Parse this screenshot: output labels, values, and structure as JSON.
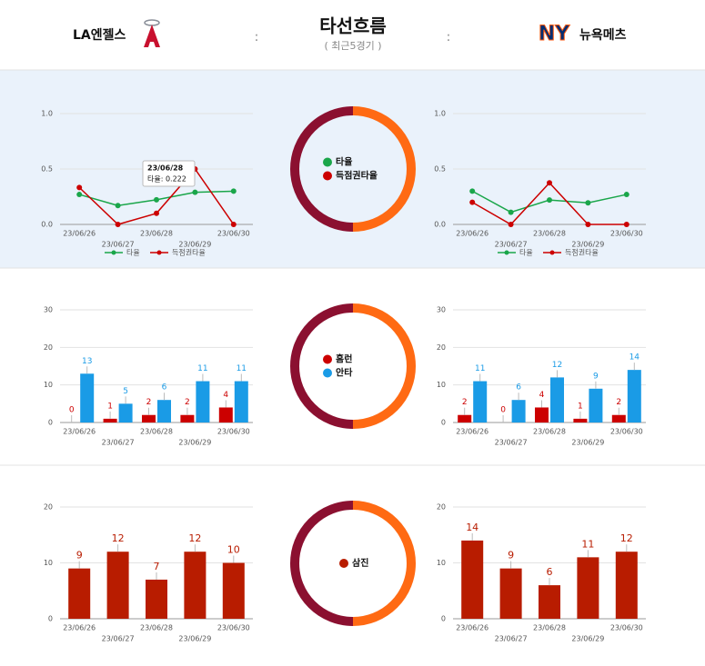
{
  "header": {
    "home_team": "LA엔젤스",
    "title": "타선흐름",
    "subtitle": "( 최근5경기 )",
    "away_team": "뉴욕메츠",
    "separator": ":"
  },
  "chart_data": [
    {
      "type": "line",
      "categories": [
        "23/06/26",
        "23/06/27",
        "23/06/28",
        "23/06/29",
        "23/06/30"
      ],
      "series": [
        {
          "name": "타율",
          "color": "#1aa64a",
          "values": [
            0.27,
            0.17,
            0.222,
            0.29,
            0.3
          ]
        },
        {
          "name": "득점권타율",
          "color": "#cc0000",
          "values": [
            0.333,
            0,
            0.1,
            0.5,
            0
          ]
        }
      ],
      "ylim": [
        0,
        1
      ],
      "yticks": [
        {
          "value": 0,
          "label": "0.0"
        },
        {
          "value": 0.5,
          "label": "0.5"
        },
        {
          "value": 1,
          "label": "1.0"
        }
      ],
      "grid": true,
      "tooltip": {
        "title": "23/06/28",
        "text": "타율: 0.222"
      }
    },
    {
      "type": "line",
      "categories": [
        "23/06/26",
        "23/06/27",
        "23/06/28",
        "23/06/29",
        "23/06/30"
      ],
      "series": [
        {
          "name": "타율",
          "color": "#1aa64a",
          "values": [
            0.3,
            0.11,
            0.22,
            0.195,
            0.27
          ]
        },
        {
          "name": "득점권타율",
          "color": "#cc0000",
          "values": [
            0.2,
            0,
            0.375,
            0,
            0
          ]
        }
      ],
      "ylim": [
        0,
        1
      ],
      "yticks": [
        {
          "value": 0,
          "label": "0.0"
        },
        {
          "value": 0.5,
          "label": "0.5"
        },
        {
          "value": 1,
          "label": "1.0"
        }
      ],
      "grid": true
    },
    {
      "type": "bar",
      "categories": [
        "23/06/26",
        "23/06/27",
        "23/06/28",
        "23/06/29",
        "23/06/30"
      ],
      "series": [
        {
          "name": "홈런",
          "color": "#cc0000",
          "values": [
            0,
            1,
            2,
            2,
            4
          ]
        },
        {
          "name": "안타",
          "color": "#1a9be6",
          "values": [
            13,
            5,
            6,
            11,
            11
          ]
        }
      ],
      "ylim": [
        0,
        30
      ],
      "yticks": [
        0,
        10,
        20,
        30
      ],
      "grid": true
    },
    {
      "type": "bar",
      "categories": [
        "23/06/26",
        "23/06/27",
        "23/06/28",
        "23/06/29",
        "23/06/30"
      ],
      "series": [
        {
          "name": "홈런",
          "color": "#cc0000",
          "values": [
            2,
            0,
            4,
            1,
            2
          ]
        },
        {
          "name": "안타",
          "color": "#1a9be6",
          "values": [
            11,
            6,
            12,
            9,
            14
          ]
        }
      ],
      "ylim": [
        0,
        30
      ],
      "yticks": [
        0,
        10,
        20,
        30
      ],
      "grid": true
    },
    {
      "type": "bar",
      "categories": [
        "23/06/26",
        "23/06/27",
        "23/06/28",
        "23/06/29",
        "23/06/30"
      ],
      "series": [
        {
          "name": "삼진",
          "color": "#b81c00",
          "values": [
            9,
            12,
            7,
            12,
            10
          ]
        }
      ],
      "ylim": [
        0,
        20
      ],
      "yticks": [
        0,
        10,
        20
      ],
      "grid": true
    },
    {
      "type": "bar",
      "categories": [
        "23/06/26",
        "23/06/27",
        "23/06/28",
        "23/06/29",
        "23/06/30"
      ],
      "series": [
        {
          "name": "삼진",
          "color": "#b81c00",
          "values": [
            14,
            9,
            6,
            11,
            12
          ]
        }
      ],
      "ylim": [
        0,
        20
      ],
      "yticks": [
        0,
        10,
        20
      ],
      "grid": true
    }
  ]
}
